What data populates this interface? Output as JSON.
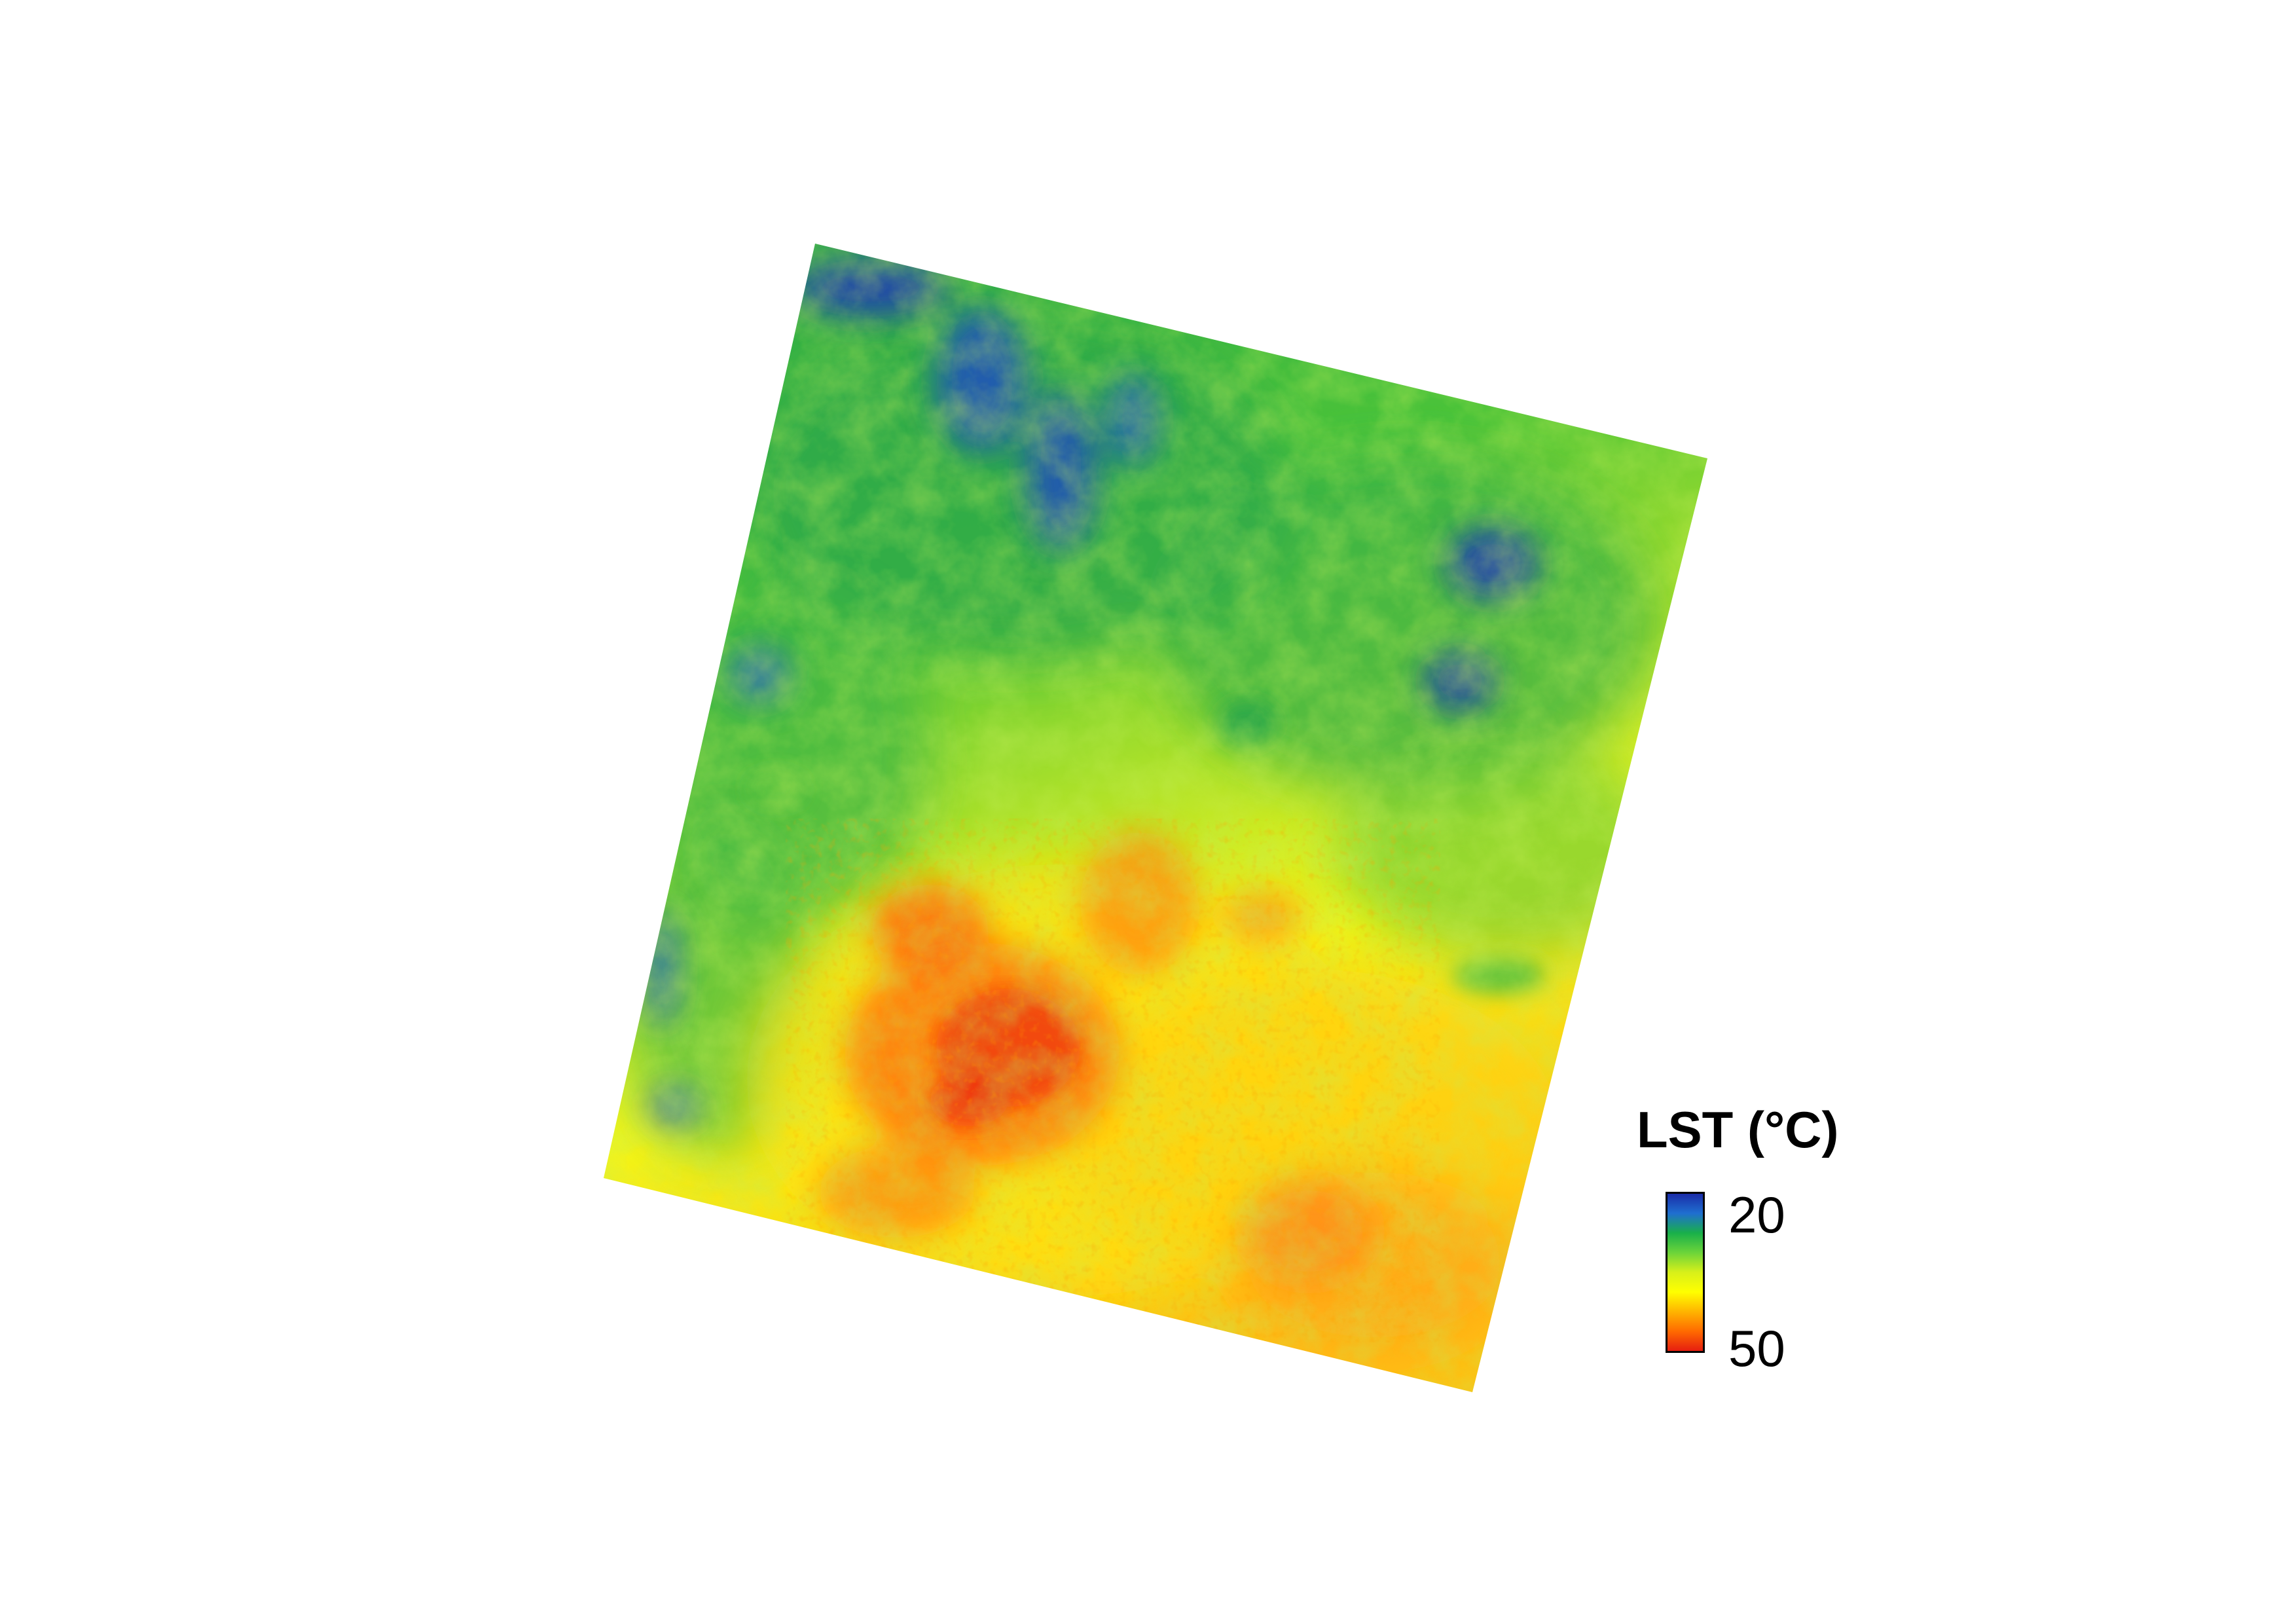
{
  "map": {
    "layer": "LST",
    "palette": [
      "#1a2ca8",
      "#1f6fd0",
      "#19b04a",
      "#6cd43a",
      "#d8f01a",
      "#ffff00",
      "#ffb400",
      "#ff6a00",
      "#e61e10"
    ]
  },
  "legend": {
    "title": "LST (°C)",
    "min_label": "20",
    "max_label": "50",
    "min_value": 20,
    "max_value": 50
  }
}
